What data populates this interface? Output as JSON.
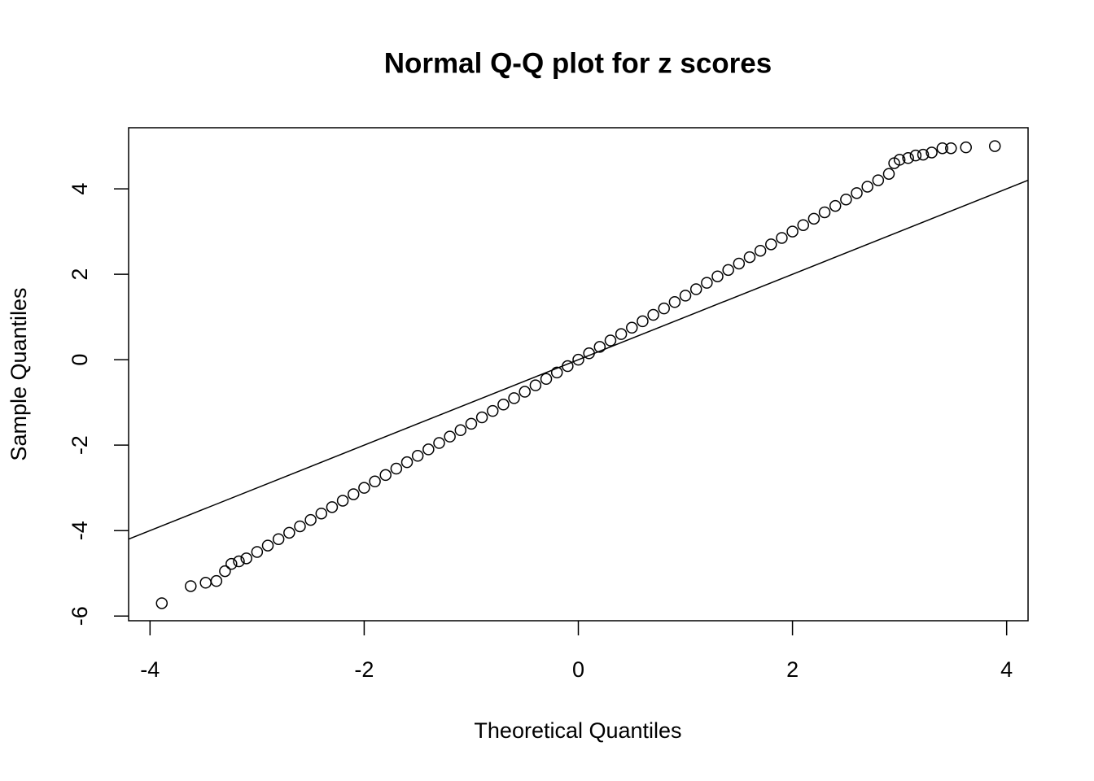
{
  "chart_data": {
    "type": "scatter",
    "title": "Normal Q-Q plot for z scores",
    "x_label": "Theoretical Quantiles",
    "y_label": "Sample Quantiles",
    "x": [
      -3.89,
      -3.62,
      -3.48,
      -3.38,
      -3.3,
      -3.24,
      -3.17,
      -3.1,
      -3.0,
      -2.9,
      -2.8,
      -2.7,
      -2.6,
      -2.5,
      -2.4,
      -2.3,
      -2.2,
      -2.1,
      -2.0,
      -1.9,
      -1.8,
      -1.7,
      -1.6,
      -1.5,
      -1.4,
      -1.3,
      -1.2,
      -1.1,
      -1.0,
      -0.9,
      -0.8,
      -0.7,
      -0.6,
      -0.5,
      -0.4,
      -0.3,
      -0.2,
      -0.1,
      0,
      0.1,
      0.2,
      0.3,
      0.4,
      0.5,
      0.6,
      0.7,
      0.8,
      0.9,
      1.0,
      1.1,
      1.2,
      1.3,
      1.4,
      1.5,
      1.6,
      1.7,
      1.8,
      1.9,
      2.0,
      2.1,
      2.2,
      2.3,
      2.4,
      2.5,
      2.6,
      2.7,
      2.8,
      2.9,
      2.95,
      3.0,
      3.08,
      3.15,
      3.22,
      3.3,
      3.4,
      3.48,
      3.62,
      3.89
    ],
    "values": [
      -5.7,
      -5.3,
      -5.22,
      -5.18,
      -4.95,
      -4.78,
      -4.72,
      -4.65,
      -4.5,
      -4.35,
      -4.2,
      -4.05,
      -3.9,
      -3.75,
      -3.6,
      -3.45,
      -3.3,
      -3.15,
      -3.0,
      -2.85,
      -2.7,
      -2.55,
      -2.4,
      -2.25,
      -2.1,
      -1.95,
      -1.8,
      -1.65,
      -1.5,
      -1.35,
      -1.2,
      -1.05,
      -0.9,
      -0.75,
      -0.6,
      -0.45,
      -0.3,
      -0.15,
      0,
      0.15,
      0.3,
      0.45,
      0.6,
      0.75,
      0.9,
      1.05,
      1.2,
      1.35,
      1.5,
      1.65,
      1.8,
      1.95,
      2.1,
      2.25,
      2.4,
      2.55,
      2.7,
      2.85,
      3.0,
      3.15,
      3.3,
      3.45,
      3.6,
      3.75,
      3.9,
      4.05,
      4.2,
      4.35,
      4.6,
      4.68,
      4.72,
      4.78,
      4.8,
      4.85,
      4.95,
      4.95,
      4.97,
      5.0
    ],
    "reference_line": {
      "x": [
        -4.2,
        4.2
      ],
      "y": [
        -4.2,
        4.2
      ]
    },
    "xlim": [
      -4.2,
      4.2
    ],
    "ylim": [
      -6.11,
      5.43
    ],
    "xticks": [
      -4,
      -2,
      0,
      2,
      4
    ],
    "yticks": [
      -6,
      -4,
      -2,
      0,
      2,
      4
    ]
  }
}
